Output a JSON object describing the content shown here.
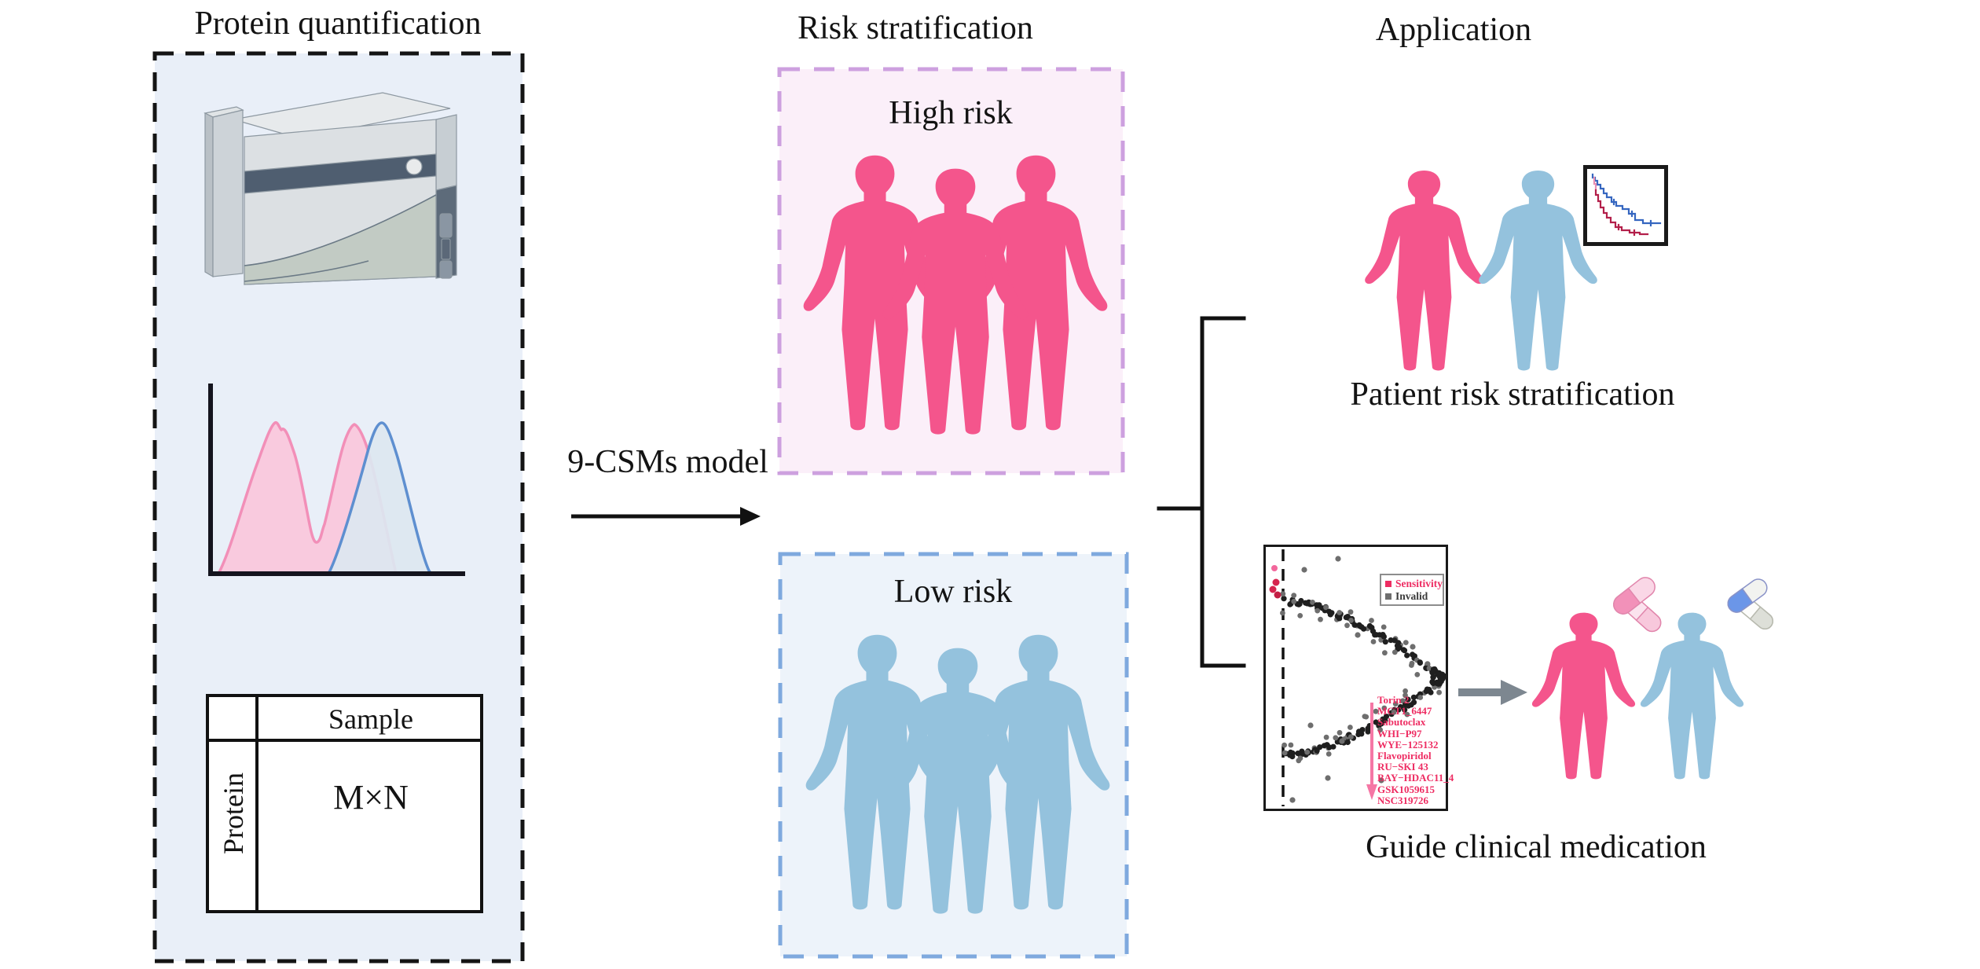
{
  "figure": {
    "left_column": {
      "title": "Protein quantification",
      "instrument_icon": "mass-spectrometer-icon",
      "plot_icon": "density-plot-icon",
      "table": {
        "column_header": "Sample",
        "row_header": "Protein",
        "cell_value": "M×N"
      }
    },
    "middle_column": {
      "title": "Risk stratification",
      "model_label": "9-CSMs model",
      "high_risk": {
        "label": "High risk"
      },
      "low_risk": {
        "label": "Low risk"
      }
    },
    "right_column": {
      "title": "Application",
      "patient_risk": {
        "caption": "Patient risk stratification",
        "km_plot_icon": "survival-curves-icon"
      },
      "medication": {
        "caption": "Guide clinical medication",
        "scatter_icon": "drug-sensitivity-scatter-icon",
        "legend": {
          "sensitivity": "Sensitivity",
          "invalid": "Invalid"
        },
        "drugs": [
          "Torin 2",
          "MCT1_6447",
          "Sabutoclax",
          "WHI−P97",
          "WYE−125132",
          "Flavopiridol",
          "RU−SKI 43",
          "BAY−HDAC11_4",
          "GSK1059615",
          "NSC319726"
        ]
      }
    },
    "colors": {
      "panel_bg": "#E9EFF8",
      "panel_border": "#141414",
      "high_box_bg": "#FBEFF9",
      "high_box_border": "#CDA0DF",
      "low_box_bg": "#EDF3FA",
      "low_box_border": "#7FA9DE",
      "person_pink": "#F4558C",
      "person_blue": "#94C2DD",
      "sensitivity_text": "#EE2C62",
      "invalid_text": "#3A3A3A",
      "km_blue": "#3566C0",
      "km_red": "#B31F4A",
      "pink_arrow": "#F577A5",
      "gray_arrow": "#7D8790"
    }
  }
}
